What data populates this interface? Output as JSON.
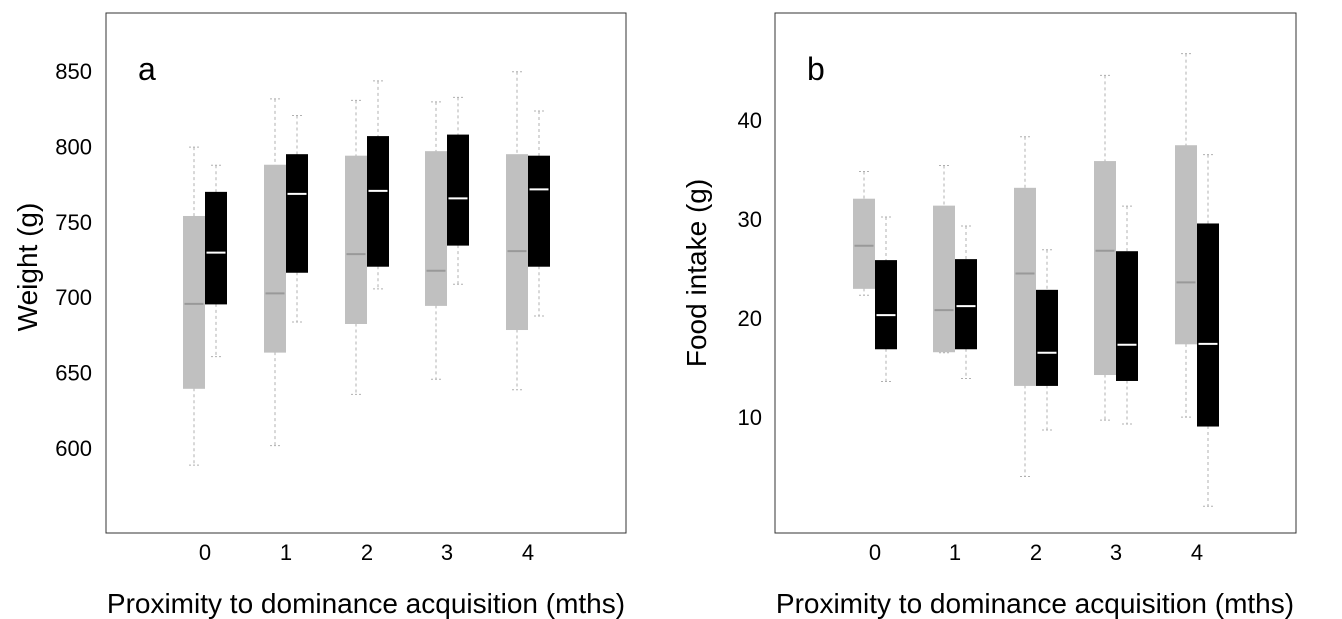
{
  "chart_data": [
    {
      "type": "box",
      "panel_label": "a",
      "xlabel": "Proximity to dominance acquisition (mths)",
      "ylabel": "Weight (g)",
      "categories": [
        "0",
        "1",
        "2",
        "3",
        "4"
      ],
      "yticks": [
        "600",
        "650",
        "700",
        "750",
        "800",
        "850"
      ],
      "ylim": [
        545,
        890
      ],
      "grid": false,
      "colors": {
        "gray_box": "#c0c0c0",
        "black_box": "#000000",
        "gray_median": "#999999",
        "black_median": "#ffffff",
        "whisker": "#b0b0b0"
      },
      "series": [
        {
          "color_role": "gray",
          "boxes": [
            {
              "min": 590,
              "q1": 641,
              "median": 697,
              "q3": 755,
              "max": 801
            },
            {
              "min": 603,
              "q1": 665,
              "median": 704,
              "q3": 789,
              "max": 833
            },
            {
              "min": 637,
              "q1": 684,
              "median": 730,
              "q3": 795,
              "max": 832
            },
            {
              "min": 647,
              "q1": 696,
              "median": 719,
              "q3": 798,
              "max": 831
            },
            {
              "min": 640,
              "q1": 680,
              "median": 732,
              "q3": 796,
              "max": 851
            }
          ]
        },
        {
          "color_role": "black",
          "boxes": [
            {
              "min": 662,
              "q1": 697,
              "median": 731,
              "q3": 771,
              "max": 789
            },
            {
              "min": 685,
              "q1": 718,
              "median": 770,
              "q3": 796,
              "max": 822
            },
            {
              "min": 707,
              "q1": 722,
              "median": 772,
              "q3": 808,
              "max": 845
            },
            {
              "min": 710,
              "q1": 736,
              "median": 767,
              "q3": 809,
              "max": 834
            },
            {
              "min": 689,
              "q1": 722,
              "median": 773,
              "q3": 795,
              "max": 825
            }
          ]
        }
      ]
    },
    {
      "type": "box",
      "panel_label": "b",
      "xlabel": "Proximity to dominance acquisition (mths)",
      "ylabel": "Food intake (g)",
      "categories": [
        "0",
        "1",
        "2",
        "3",
        "4"
      ],
      "yticks": [
        "10",
        "20",
        "30",
        "40"
      ],
      "ylim": [
        -1.5,
        51
      ],
      "grid": false,
      "colors": {
        "gray_box": "#c0c0c0",
        "black_box": "#000000",
        "gray_median": "#999999",
        "black_median": "#ffffff",
        "whisker": "#b0b0b0"
      },
      "series": [
        {
          "color_role": "gray",
          "boxes": [
            {
              "min": 22.5,
              "q1": 23.2,
              "median": 27.5,
              "q3": 32.2,
              "max": 35.0
            },
            {
              "min": 16.7,
              "q1": 16.8,
              "median": 21.0,
              "q3": 31.5,
              "max": 35.6
            },
            {
              "min": 4.2,
              "q1": 13.4,
              "median": 24.7,
              "q3": 33.3,
              "max": 38.5
            },
            {
              "min": 9.9,
              "q1": 14.5,
              "median": 27.0,
              "q3": 36.0,
              "max": 44.7
            },
            {
              "min": 10.2,
              "q1": 17.6,
              "median": 23.8,
              "q3": 37.6,
              "max": 46.9
            }
          ]
        },
        {
          "color_role": "black",
          "boxes": [
            {
              "min": 13.8,
              "q1": 17.1,
              "median": 20.5,
              "q3": 26.0,
              "max": 30.4
            },
            {
              "min": 14.1,
              "q1": 17.1,
              "median": 21.4,
              "q3": 26.1,
              "max": 29.5
            },
            {
              "min": 8.9,
              "q1": 13.4,
              "median": 16.7,
              "q3": 23.0,
              "max": 27.1
            },
            {
              "min": 9.5,
              "q1": 13.9,
              "median": 17.5,
              "q3": 26.9,
              "max": 31.5
            },
            {
              "min": 1.2,
              "q1": 9.3,
              "median": 17.6,
              "q3": 29.7,
              "max": 36.7
            }
          ]
        }
      ]
    }
  ]
}
